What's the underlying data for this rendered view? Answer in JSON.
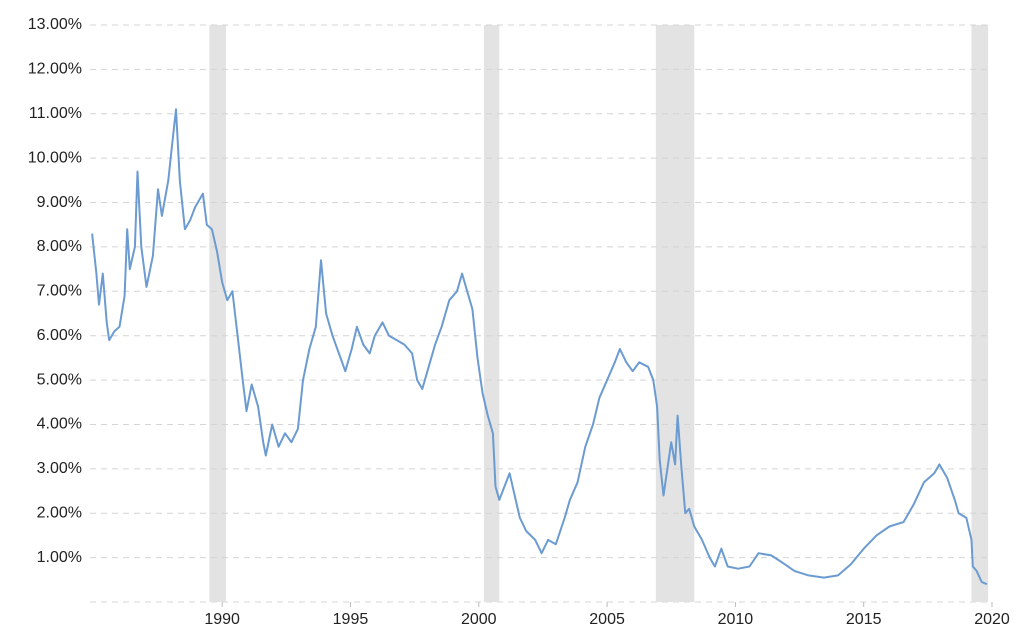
{
  "chart_data": {
    "type": "line",
    "x": [
      1984.93,
      1985.1,
      1985.2,
      1985.35,
      1985.5,
      1985.6,
      1985.8,
      1986.0,
      1986.2,
      1986.3,
      1986.4,
      1986.6,
      1986.7,
      1986.85,
      1987.05,
      1987.3,
      1987.5,
      1987.65,
      1987.9,
      1988.05,
      1988.2,
      1988.35,
      1988.55,
      1988.75,
      1988.95,
      1989.25,
      1989.4,
      1989.6,
      1989.8,
      1990.0,
      1990.2,
      1990.4,
      1990.6,
      1990.8,
      1990.95,
      1991.15,
      1991.4,
      1991.6,
      1991.7,
      1991.95,
      1992.2,
      1992.45,
      1992.7,
      1992.95,
      1993.15,
      1993.4,
      1993.65,
      1993.85,
      1994.05,
      1994.3,
      1994.55,
      1994.8,
      1995.05,
      1995.25,
      1995.5,
      1995.75,
      1995.95,
      1996.25,
      1996.5,
      1996.8,
      1997.1,
      1997.4,
      1997.6,
      1997.8,
      1998.0,
      1998.3,
      1998.55,
      1998.85,
      1999.15,
      1999.35,
      1999.55,
      1999.75,
      1999.95,
      2000.15,
      2000.35,
      2000.55,
      2000.65,
      2000.8,
      2001.0,
      2001.2,
      2001.4,
      2001.6,
      2001.85,
      2002.2,
      2002.45,
      2002.7,
      2003.0,
      2003.35,
      2003.55,
      2003.85,
      2004.15,
      2004.45,
      2004.7,
      2005.0,
      2005.3,
      2005.5,
      2005.75,
      2006.0,
      2006.25,
      2006.6,
      2006.8,
      2006.95,
      2007.05,
      2007.2,
      2007.35,
      2007.5,
      2007.65,
      2007.75,
      2007.9,
      2008.05,
      2008.2,
      2008.4,
      2008.7,
      2009.0,
      2009.2,
      2009.45,
      2009.7,
      2010.1,
      2010.55,
      2010.9,
      2011.4,
      2011.8,
      2012.3,
      2012.85,
      2013.45,
      2014.0,
      2014.5,
      2015.0,
      2015.5,
      2016.0,
      2016.55,
      2016.95,
      2017.35,
      2017.75,
      2017.95,
      2018.25,
      2018.55,
      2018.7,
      2019.0,
      2019.2,
      2019.25,
      2019.4,
      2019.6,
      2019.8
    ],
    "series": [
      {
        "color": "#6b9bd1",
        "values": [
          8.3,
          7.4,
          6.7,
          7.4,
          6.3,
          5.9,
          6.1,
          6.2,
          6.9,
          8.4,
          7.5,
          8.0,
          9.7,
          8.0,
          7.1,
          7.8,
          9.3,
          8.7,
          9.5,
          10.3,
          11.1,
          9.5,
          8.4,
          8.6,
          8.9,
          9.2,
          8.5,
          8.4,
          7.9,
          7.2,
          6.8,
          7.0,
          6.0,
          5.0,
          4.3,
          4.9,
          4.4,
          3.6,
          3.3,
          4.0,
          3.5,
          3.8,
          3.6,
          3.9,
          5.0,
          5.7,
          6.2,
          7.7,
          6.5,
          6.0,
          5.6,
          5.2,
          5.7,
          6.2,
          5.8,
          5.6,
          6.0,
          6.3,
          6.0,
          5.9,
          5.8,
          5.6,
          5.0,
          4.8,
          5.2,
          5.8,
          6.2,
          6.8,
          7.0,
          7.4,
          7.0,
          6.6,
          5.5,
          4.7,
          4.2,
          3.8,
          2.6,
          2.3,
          2.6,
          2.9,
          2.4,
          1.9,
          1.6,
          1.4,
          1.1,
          1.4,
          1.3,
          1.9,
          2.3,
          2.7,
          3.5,
          4.0,
          4.6,
          5.0,
          5.4,
          5.7,
          5.4,
          5.2,
          5.4,
          5.3,
          5.0,
          4.4,
          3.2,
          2.4,
          3.0,
          3.6,
          3.1,
          4.2,
          3.0,
          2.0,
          2.1,
          1.7,
          1.4,
          1.0,
          0.8,
          1.2,
          0.8,
          0.75,
          0.8,
          1.1,
          1.05,
          0.9,
          0.7,
          0.6,
          0.55,
          0.6,
          0.85,
          1.2,
          1.5,
          1.7,
          1.8,
          2.2,
          2.7,
          2.9,
          3.1,
          2.8,
          2.3,
          2.0,
          1.9,
          1.4,
          0.8,
          0.7,
          0.45,
          0.4
        ]
      }
    ],
    "xlim": [
      1984.85,
      2020.0
    ],
    "xticks": [
      1990,
      1995,
      2000,
      2005,
      2010,
      2015,
      2020
    ],
    "ylim": [
      0,
      13
    ],
    "yticks": [
      {
        "value": 1,
        "label": "1.00%"
      },
      {
        "value": 2,
        "label": "2.00%"
      },
      {
        "value": 3,
        "label": "3.00%"
      },
      {
        "value": 4,
        "label": "4.00%"
      },
      {
        "value": 5,
        "label": "5.00%"
      },
      {
        "value": 6,
        "label": "6.00%"
      },
      {
        "value": 7,
        "label": "7.00%"
      },
      {
        "value": 8,
        "label": "8.00%"
      },
      {
        "value": 9,
        "label": "9.00%"
      },
      {
        "value": 10,
        "label": "10.00%"
      },
      {
        "value": 11,
        "label": "11.00%"
      },
      {
        "value": 12,
        "label": "12.00%"
      },
      {
        "value": 13,
        "label": "13.00%"
      }
    ],
    "shaded_ranges": [
      [
        1989.5,
        1990.15
      ],
      [
        2000.2,
        2000.8
      ],
      [
        2006.9,
        2008.4
      ],
      [
        2019.2,
        2019.85
      ]
    ],
    "shade_color": "#e3e3e3",
    "grid": true
  }
}
